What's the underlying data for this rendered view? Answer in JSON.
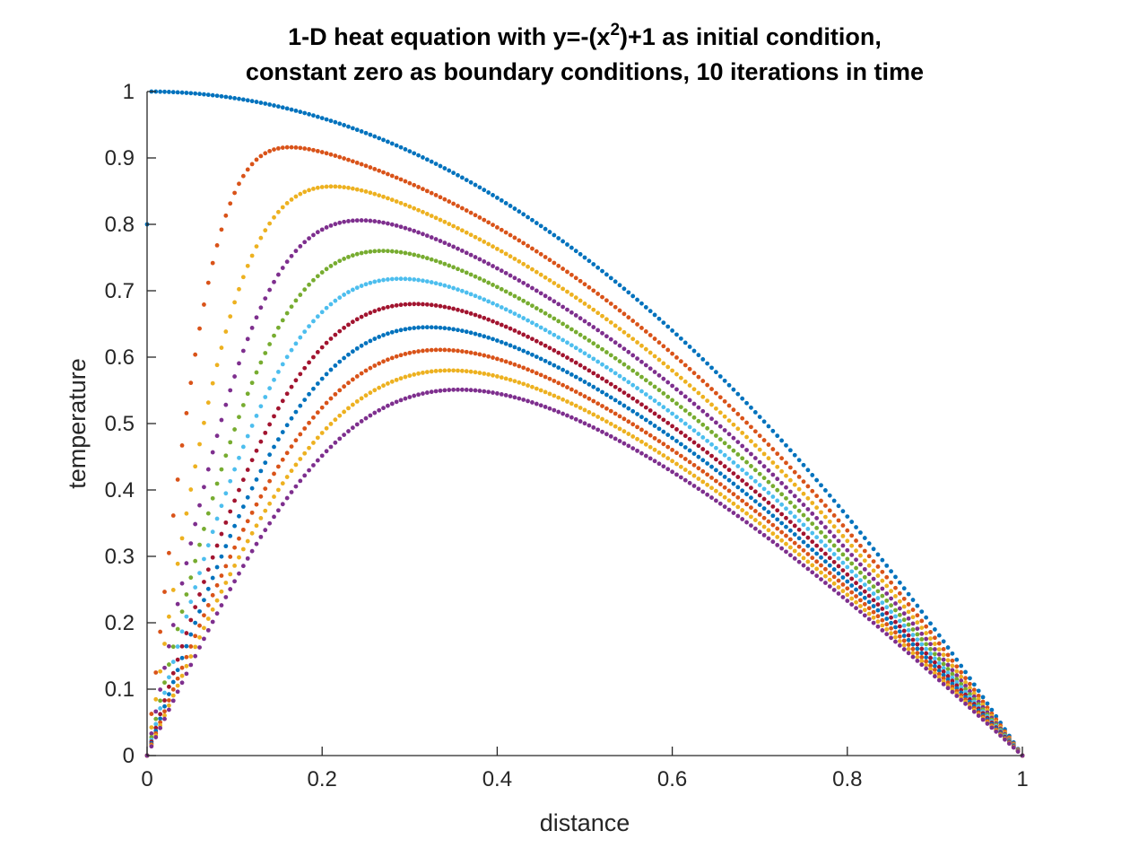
{
  "chart_data": {
    "type": "scatter",
    "title_lines": [
      [
        "1-D heat equation with y=-(x",
        "2",
        ")+1 as initial condition,"
      ],
      [
        "constant zero as boundary conditions, 10 iterations in time"
      ]
    ],
    "xlabel": "distance",
    "ylabel": "temperature",
    "xlim": [
      0,
      1
    ],
    "ylim": [
      0,
      1
    ],
    "xticks": [
      "0",
      "0.2",
      "0.4",
      "0.6",
      "0.8",
      "1"
    ],
    "xtick_values": [
      0,
      0.2,
      0.4,
      0.6,
      0.8,
      1
    ],
    "yticks": [
      "0",
      "0.1",
      "0.2",
      "0.3",
      "0.4",
      "0.5",
      "0.6",
      "0.7",
      "0.8",
      "0.9",
      "1"
    ],
    "ytick_values": [
      0,
      0.1,
      0.2,
      0.3,
      0.4,
      0.5,
      0.6,
      0.7,
      0.8,
      0.9,
      1
    ],
    "grid": false,
    "legend": "none",
    "marker_color_cycle": [
      "#0072BD",
      "#D95319",
      "#EDB120",
      "#7E2F8E",
      "#77AC30",
      "#4DBEEE",
      "#A2142F",
      "#0072BD",
      "#D95319",
      "#EDB120",
      "#7E2F8E"
    ],
    "series": [
      {
        "peak_x": 0.0,
        "peak_y": 1.0,
        "color": "#0072BD"
      },
      {
        "peak_x": 0.24,
        "peak_y": 0.916,
        "color": "#D95319"
      },
      {
        "peak_x": 0.3,
        "peak_y": 0.857,
        "color": "#EDB120"
      },
      {
        "peak_x": 0.34,
        "peak_y": 0.806,
        "color": "#7E2F8E"
      },
      {
        "peak_x": 0.37,
        "peak_y": 0.76,
        "color": "#77AC30"
      },
      {
        "peak_x": 0.39,
        "peak_y": 0.718,
        "color": "#4DBEEE"
      },
      {
        "peak_x": 0.41,
        "peak_y": 0.68,
        "color": "#A2142F"
      },
      {
        "peak_x": 0.42,
        "peak_y": 0.645,
        "color": "#0072BD"
      },
      {
        "peak_x": 0.43,
        "peak_y": 0.611,
        "color": "#D95319"
      },
      {
        "peak_x": 0.44,
        "peak_y": 0.58,
        "color": "#EDB120"
      },
      {
        "peak_x": 0.45,
        "peak_y": 0.551,
        "color": "#7E2F8E"
      }
    ]
  }
}
